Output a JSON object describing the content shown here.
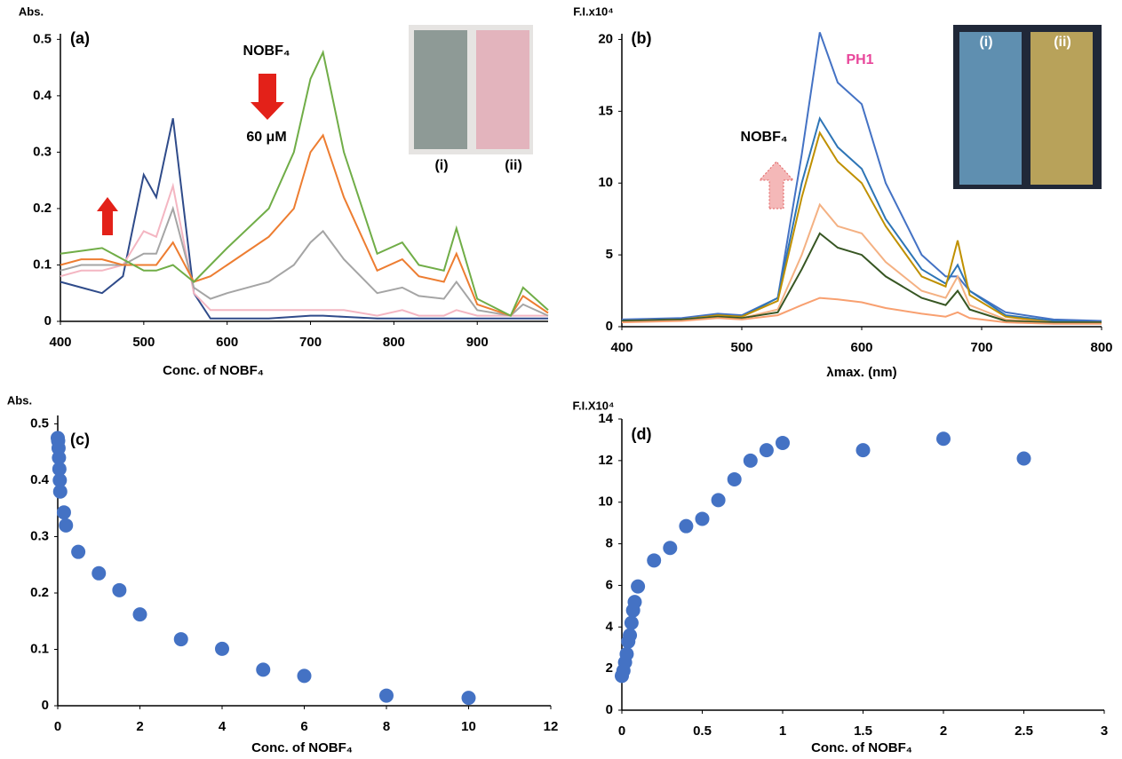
{
  "chart_data": [
    {
      "type": "line",
      "panel_label": "(a)",
      "y_label": "Abs.",
      "x_label": "Conc. of NOBF₄",
      "annotations": [
        "NOBF₄",
        "60 μM",
        "(i)",
        "(ii)"
      ],
      "xlim": [
        400,
        985
      ],
      "ylim": [
        0,
        0.51
      ],
      "xticks": [
        400,
        500,
        600,
        700,
        800,
        900
      ],
      "yticks": [
        0,
        0.1,
        0.2,
        0.3,
        0.4,
        0.5
      ],
      "x": [
        400,
        425,
        450,
        475,
        500,
        515,
        535,
        560,
        580,
        600,
        650,
        680,
        700,
        715,
        740,
        780,
        810,
        830,
        860,
        875,
        900,
        940,
        955,
        985
      ],
      "series": [
        {
          "color": "#2f4b8a",
          "values": [
            0.07,
            0.06,
            0.05,
            0.08,
            0.26,
            0.22,
            0.36,
            0.05,
            0.005,
            0.005,
            0.005,
            0.008,
            0.01,
            0.01,
            0.008,
            0.005,
            0.005,
            0.005,
            0.005,
            0.005,
            0.005,
            0.005,
            0.005,
            0.005
          ]
        },
        {
          "color": "#f4b6c2",
          "values": [
            0.08,
            0.09,
            0.09,
            0.1,
            0.16,
            0.15,
            0.24,
            0.05,
            0.02,
            0.02,
            0.02,
            0.02,
            0.02,
            0.02,
            0.02,
            0.01,
            0.02,
            0.01,
            0.01,
            0.02,
            0.01,
            0.01,
            0.01,
            0.01
          ]
        },
        {
          "color": "#a5a5a5",
          "values": [
            0.09,
            0.1,
            0.1,
            0.1,
            0.12,
            0.12,
            0.2,
            0.06,
            0.04,
            0.05,
            0.07,
            0.1,
            0.14,
            0.16,
            0.11,
            0.05,
            0.06,
            0.045,
            0.04,
            0.07,
            0.02,
            0.01,
            0.03,
            0.01
          ]
        },
        {
          "color": "#ed7d31",
          "values": [
            0.1,
            0.11,
            0.11,
            0.1,
            0.1,
            0.1,
            0.14,
            0.07,
            0.08,
            0.1,
            0.15,
            0.2,
            0.3,
            0.33,
            0.22,
            0.09,
            0.11,
            0.08,
            0.07,
            0.12,
            0.03,
            0.01,
            0.045,
            0.015
          ]
        },
        {
          "color": "#70ad47",
          "values": [
            0.12,
            0.125,
            0.13,
            0.11,
            0.09,
            0.09,
            0.1,
            0.07,
            0.1,
            0.13,
            0.2,
            0.3,
            0.43,
            0.477,
            0.3,
            0.12,
            0.14,
            0.1,
            0.09,
            0.165,
            0.04,
            0.01,
            0.06,
            0.02
          ]
        }
      ]
    },
    {
      "type": "line",
      "panel_label": "(b)",
      "y_label": "F.I.x10⁴",
      "x_label": "λmax. (nm)",
      "annotations": [
        "PH1",
        "NOBF₄",
        "(i)",
        "(ii)"
      ],
      "xlim": [
        400,
        800
      ],
      "ylim": [
        0,
        20.4
      ],
      "xticks": [
        400,
        500,
        600,
        700,
        800
      ],
      "yticks": [
        0,
        5,
        10,
        15,
        20
      ],
      "x": [
        400,
        450,
        480,
        500,
        530,
        550,
        565,
        580,
        600,
        620,
        650,
        670,
        680,
        690,
        720,
        760,
        800
      ],
      "series": [
        {
          "color": "#4472c4",
          "values": [
            0.5,
            0.6,
            0.9,
            0.8,
            2,
            12,
            20.5,
            17,
            15.5,
            10,
            5,
            3.5,
            3.5,
            2.5,
            1,
            0.5,
            0.4
          ]
        },
        {
          "color": "#2e75b6",
          "values": [
            0.4,
            0.5,
            0.8,
            0.7,
            2,
            10,
            14.5,
            12.5,
            11,
            7.5,
            4,
            3,
            4.3,
            2.5,
            0.8,
            0.4,
            0.3
          ]
        },
        {
          "color": "#bf9000",
          "values": [
            0.4,
            0.5,
            0.8,
            0.7,
            1.8,
            9,
            13.5,
            11.5,
            10,
            7,
            3.5,
            2.8,
            6,
            2.2,
            0.7,
            0.3,
            0.3
          ]
        },
        {
          "color": "#f4b183",
          "values": [
            0.4,
            0.5,
            0.7,
            0.6,
            1.2,
            5,
            8.5,
            7,
            6.5,
            4.5,
            2.5,
            2,
            3.5,
            1.5,
            0.5,
            0.3,
            0.3
          ]
        },
        {
          "color": "#375623",
          "values": [
            0.4,
            0.5,
            0.7,
            0.6,
            1,
            4,
            6.5,
            5.5,
            5,
            3.5,
            2,
            1.5,
            2.5,
            1.2,
            0.4,
            0.3,
            0.3
          ]
        },
        {
          "color": "#f8a070",
          "values": [
            0.3,
            0.4,
            0.6,
            0.5,
            0.8,
            1.5,
            2,
            1.9,
            1.7,
            1.3,
            0.9,
            0.7,
            1,
            0.6,
            0.3,
            0.2,
            0.2
          ]
        }
      ]
    },
    {
      "type": "scatter",
      "panel_label": "(c)",
      "y_label": "Abs.",
      "x_label": "Conc. of NOBF₄",
      "xlim": [
        0,
        12
      ],
      "ylim": [
        0,
        0.515
      ],
      "xticks": [
        0,
        2,
        4,
        6,
        8,
        10,
        12
      ],
      "yticks": [
        0,
        0.1,
        0.2,
        0.3,
        0.4,
        0.5
      ],
      "color": "#4472c4",
      "x": [
        0,
        0.01,
        0.02,
        0.03,
        0.04,
        0.05,
        0.06,
        0.15,
        0.2,
        0.5,
        1,
        1.5,
        2,
        3,
        4,
        5,
        6,
        8,
        10
      ],
      "values": [
        0.475,
        0.47,
        0.457,
        0.44,
        0.42,
        0.4,
        0.38,
        0.343,
        0.32,
        0.273,
        0.235,
        0.205,
        0.162,
        0.118,
        0.101,
        0.064,
        0.053,
        0.018,
        0.014
      ]
    },
    {
      "type": "scatter",
      "panel_label": "(d)",
      "y_label": "F.I.X10⁴",
      "x_label": "Conc. of NOBF₄",
      "xlim": [
        0,
        3
      ],
      "ylim": [
        0,
        14
      ],
      "xticks": [
        0,
        0.5,
        1,
        1.5,
        2,
        2.5,
        3
      ],
      "yticks": [
        0,
        2,
        4,
        6,
        8,
        10,
        12,
        14
      ],
      "color": "#4472c4",
      "x": [
        0,
        0.01,
        0.02,
        0.03,
        0.04,
        0.05,
        0.06,
        0.07,
        0.08,
        0.1,
        0.2,
        0.3,
        0.4,
        0.5,
        0.6,
        0.7,
        0.8,
        0.9,
        1,
        1.5,
        2,
        2.5
      ],
      "values": [
        1.65,
        1.9,
        2.3,
        2.7,
        3.3,
        3.6,
        4.2,
        4.8,
        5.2,
        5.95,
        7.2,
        7.8,
        8.85,
        9.2,
        10.1,
        11.1,
        12,
        12.5,
        12.85,
        12.5,
        13.05,
        12.1
      ]
    }
  ]
}
